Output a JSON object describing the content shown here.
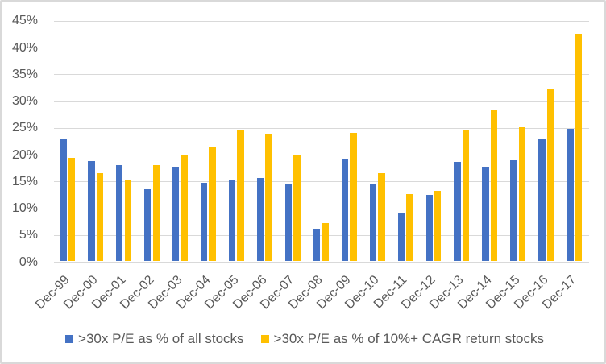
{
  "chart_data": {
    "type": "bar",
    "title": "",
    "categories": [
      "Dec-99",
      "Dec-00",
      "Dec-01",
      "Dec-02",
      "Dec-03",
      "Dec-04",
      "Dec-05",
      "Dec-06",
      "Dec-07",
      "Dec-08",
      "Dec-09",
      "Dec-10",
      "Dec-11",
      "Dec-12",
      "Dec-13",
      "Dec-14",
      "Dec-15",
      "Dec-16",
      "Dec-17"
    ],
    "series": [
      {
        "name": ">30x P/E as % of all stocks",
        "color": "#4472C4",
        "values": [
          23.0,
          18.7,
          18.0,
          13.4,
          17.6,
          14.7,
          15.2,
          15.6,
          14.4,
          6.1,
          19.0,
          14.5,
          9.1,
          12.4,
          18.6,
          17.6,
          18.9,
          22.9,
          24.7
        ]
      },
      {
        "name": ">30x P/E as % of 10%+ CAGR return stocks",
        "color": "#FFC000",
        "values": [
          19.3,
          16.5,
          15.3,
          18.0,
          20.0,
          21.5,
          24.6,
          23.9,
          19.9,
          7.1,
          24.0,
          16.5,
          12.6,
          13.1,
          24.6,
          28.4,
          25.0,
          32.1,
          42.5
        ]
      }
    ],
    "xlabel": "",
    "ylabel": "",
    "ylim": [
      0,
      45
    ],
    "ytick_step": 5,
    "yticks": [
      "0%",
      "5%",
      "10%",
      "15%",
      "20%",
      "25%",
      "30%",
      "35%",
      "40%",
      "45%"
    ],
    "grid": true,
    "legend_position": "bottom",
    "colors": {
      "gridline": "#D9D9D9",
      "axis_text": "#595959",
      "frame_border": "#D9D9D9",
      "background": "#FFFFFF"
    }
  }
}
